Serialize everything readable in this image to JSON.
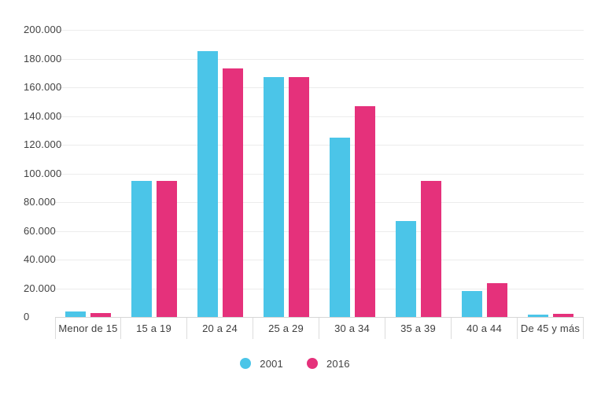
{
  "chart_data": {
    "type": "bar",
    "title": "",
    "xlabel": "",
    "ylabel": "",
    "categories": [
      "Menor de 15",
      "15 a 19",
      "20 a 24",
      "25 a 29",
      "30 a 34",
      "35 a 39",
      "40 a 44",
      "De 45 y más"
    ],
    "series": [
      {
        "name": "2001",
        "color": "#4bc5e8",
        "values": [
          4000,
          95000,
          185000,
          167000,
          125000,
          67000,
          18000,
          1500
        ]
      },
      {
        "name": "2016",
        "color": "#e5317b",
        "values": [
          3000,
          95000,
          173000,
          167000,
          147000,
          95000,
          23500,
          2000
        ]
      }
    ],
    "ylim": [
      0,
      200000
    ],
    "y_ticks": [
      {
        "value": 0,
        "label": "0"
      },
      {
        "value": 20000,
        "label": "20.000"
      },
      {
        "value": 40000,
        "label": "40.000"
      },
      {
        "value": 60000,
        "label": "60.000"
      },
      {
        "value": 80000,
        "label": "80.000"
      },
      {
        "value": 100000,
        "label": "100.000"
      },
      {
        "value": 120000,
        "label": "120.000"
      },
      {
        "value": 140000,
        "label": "140.000"
      },
      {
        "value": 160000,
        "label": "160.000"
      },
      {
        "value": 180000,
        "label": "180.000"
      },
      {
        "value": 200000,
        "label": "200.000"
      }
    ],
    "grid": true,
    "legend_position": "bottom-center"
  },
  "legend": {
    "items": [
      {
        "label": "2001",
        "color": "#4bc5e8"
      },
      {
        "label": "2016",
        "color": "#e5317b"
      }
    ]
  },
  "colors": {
    "background": "#ffffff",
    "text": "#424242",
    "gridline": "#ececec",
    "axis_line": "#d6d6d6",
    "separator": "#dcdcdc",
    "series_2001": "#4bc5e8",
    "series_2016": "#e5317b"
  }
}
